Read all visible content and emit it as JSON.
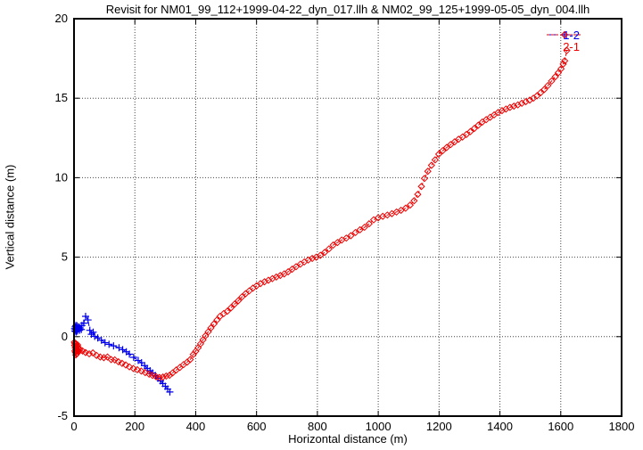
{
  "chart_data": {
    "type": "scatter",
    "title": "Revisit for NM01_99_112+1999-04-22_dyn_017.llh & NM02_99_125+1999-05-05_dyn_004.llh",
    "xlabel": "Horizontal distance (m)",
    "ylabel": "Vertical distance (m)",
    "xlim": [
      0,
      1800
    ],
    "ylim": [
      -5,
      20
    ],
    "xticks": [
      0,
      200,
      400,
      600,
      800,
      1000,
      1200,
      1400,
      1600,
      1800
    ],
    "yticks": [
      -5,
      0,
      5,
      10,
      15,
      20
    ],
    "grid": true,
    "legend_position": "top-right-inside",
    "colors": {
      "border": "#000000",
      "grid": "#444444",
      "title": "#000000"
    },
    "series": [
      {
        "name": "1-2",
        "color": "#0000ee",
        "marker": "plus",
        "dash": "5,3",
        "points": [
          [
            2,
            0.5
          ],
          [
            3,
            0.35
          ],
          [
            4,
            0.62
          ],
          [
            5,
            0.45
          ],
          [
            6,
            0.7
          ],
          [
            7,
            0.3
          ],
          [
            8,
            0.55
          ],
          [
            9,
            0.42
          ],
          [
            10,
            0.68
          ],
          [
            11,
            0.35
          ],
          [
            12,
            0.58
          ],
          [
            14,
            0.48
          ],
          [
            16,
            0.62
          ],
          [
            18,
            0.4
          ],
          [
            20,
            0.55
          ],
          [
            24,
            0.45
          ],
          [
            26,
            0.7
          ],
          [
            32,
            0.85
          ],
          [
            38,
            1.28
          ],
          [
            46,
            1.05
          ],
          [
            52,
            0.4
          ],
          [
            57,
            0.15
          ],
          [
            63,
            0.28
          ],
          [
            68,
            0.02
          ],
          [
            78,
            -0.08
          ],
          [
            90,
            -0.22
          ],
          [
            102,
            -0.38
          ],
          [
            115,
            -0.48
          ],
          [
            130,
            -0.58
          ],
          [
            148,
            -0.7
          ],
          [
            160,
            -0.82
          ],
          [
            172,
            -0.95
          ],
          [
            182,
            -1.1
          ],
          [
            196,
            -1.3
          ],
          [
            211,
            -1.5
          ],
          [
            222,
            -1.64
          ],
          [
            232,
            -1.82
          ],
          [
            241,
            -2.0
          ],
          [
            250,
            -2.14
          ],
          [
            258,
            -2.28
          ],
          [
            268,
            -2.45
          ],
          [
            276,
            -2.62
          ],
          [
            284,
            -2.78
          ],
          [
            292,
            -2.95
          ],
          [
            300,
            -3.12
          ],
          [
            308,
            -3.3
          ],
          [
            315,
            -3.48
          ]
        ]
      },
      {
        "name": "2-1",
        "color": "#ee0000",
        "marker": "diamond",
        "dash": "3,2",
        "points": [
          [
            1,
            -0.35
          ],
          [
            2,
            -0.55
          ],
          [
            3,
            -0.42
          ],
          [
            3,
            -0.9
          ],
          [
            4,
            -0.7
          ],
          [
            5,
            -0.5
          ],
          [
            5,
            -1.0
          ],
          [
            6,
            -0.82
          ],
          [
            6,
            -1.15
          ],
          [
            7,
            -0.45
          ],
          [
            8,
            -0.65
          ],
          [
            8,
            -1.08
          ],
          [
            9,
            -0.9
          ],
          [
            10,
            -0.6
          ],
          [
            10,
            -1.05
          ],
          [
            11,
            -0.78
          ],
          [
            12,
            -0.52
          ],
          [
            13,
            -0.88
          ],
          [
            14,
            -0.68
          ],
          [
            15,
            -0.95
          ],
          [
            18,
            -0.8
          ],
          [
            28,
            -0.9
          ],
          [
            38,
            -1.0
          ],
          [
            50,
            -1.08
          ],
          [
            62,
            -1.02
          ],
          [
            74,
            -1.18
          ],
          [
            86,
            -1.28
          ],
          [
            98,
            -1.32
          ],
          [
            110,
            -1.28
          ],
          [
            122,
            -1.44
          ],
          [
            134,
            -1.46
          ],
          [
            146,
            -1.58
          ],
          [
            158,
            -1.68
          ],
          [
            170,
            -1.78
          ],
          [
            182,
            -1.9
          ],
          [
            195,
            -2.0
          ],
          [
            208,
            -2.08
          ],
          [
            221,
            -2.16
          ],
          [
            234,
            -2.26
          ],
          [
            247,
            -2.36
          ],
          [
            258,
            -2.44
          ],
          [
            270,
            -2.52
          ],
          [
            281,
            -2.57
          ],
          [
            292,
            -2.54
          ],
          [
            303,
            -2.48
          ],
          [
            314,
            -2.43
          ],
          [
            324,
            -2.28
          ],
          [
            336,
            -2.1
          ],
          [
            348,
            -1.94
          ],
          [
            360,
            -1.76
          ],
          [
            372,
            -1.6
          ],
          [
            382,
            -1.44
          ],
          [
            392,
            -1.12
          ],
          [
            400,
            -0.92
          ],
          [
            408,
            -0.7
          ],
          [
            416,
            -0.45
          ],
          [
            424,
            -0.2
          ],
          [
            432,
            0.05
          ],
          [
            441,
            0.3
          ],
          [
            450,
            0.55
          ],
          [
            460,
            0.8
          ],
          [
            470,
            1.05
          ],
          [
            480,
            1.28
          ],
          [
            492,
            1.45
          ],
          [
            504,
            1.6
          ],
          [
            516,
            1.82
          ],
          [
            528,
            2.05
          ],
          [
            540,
            2.26
          ],
          [
            552,
            2.5
          ],
          [
            564,
            2.7
          ],
          [
            576,
            2.88
          ],
          [
            588,
            3.05
          ],
          [
            600,
            3.2
          ],
          [
            613,
            3.34
          ],
          [
            626,
            3.45
          ],
          [
            639,
            3.55
          ],
          [
            652,
            3.65
          ],
          [
            665,
            3.75
          ],
          [
            678,
            3.85
          ],
          [
            691,
            3.95
          ],
          [
            704,
            4.08
          ],
          [
            717,
            4.24
          ],
          [
            730,
            4.4
          ],
          [
            744,
            4.56
          ],
          [
            757,
            4.7
          ],
          [
            770,
            4.82
          ],
          [
            783,
            4.92
          ],
          [
            796,
            5.0
          ],
          [
            810,
            5.12
          ],
          [
            824,
            5.3
          ],
          [
            838,
            5.52
          ],
          [
            852,
            5.76
          ],
          [
            866,
            5.92
          ],
          [
            880,
            6.08
          ],
          [
            895,
            6.2
          ],
          [
            910,
            6.35
          ],
          [
            925,
            6.55
          ],
          [
            940,
            6.72
          ],
          [
            955,
            6.88
          ],
          [
            970,
            7.1
          ],
          [
            985,
            7.35
          ],
          [
            1000,
            7.48
          ],
          [
            1015,
            7.57
          ],
          [
            1030,
            7.65
          ],
          [
            1045,
            7.74
          ],
          [
            1060,
            7.84
          ],
          [
            1075,
            7.95
          ],
          [
            1090,
            8.08
          ],
          [
            1105,
            8.28
          ],
          [
            1118,
            8.55
          ],
          [
            1130,
            8.95
          ],
          [
            1142,
            9.45
          ],
          [
            1152,
            9.95
          ],
          [
            1163,
            10.4
          ],
          [
            1175,
            10.78
          ],
          [
            1187,
            11.12
          ],
          [
            1199,
            11.48
          ],
          [
            1212,
            11.7
          ],
          [
            1225,
            11.9
          ],
          [
            1238,
            12.08
          ],
          [
            1251,
            12.25
          ],
          [
            1264,
            12.42
          ],
          [
            1277,
            12.56
          ],
          [
            1290,
            12.72
          ],
          [
            1303,
            12.9
          ],
          [
            1316,
            13.1
          ],
          [
            1329,
            13.3
          ],
          [
            1342,
            13.5
          ],
          [
            1355,
            13.65
          ],
          [
            1368,
            13.8
          ],
          [
            1381,
            13.95
          ],
          [
            1394,
            14.1
          ],
          [
            1407,
            14.22
          ],
          [
            1420,
            14.32
          ],
          [
            1433,
            14.42
          ],
          [
            1446,
            14.5
          ],
          [
            1459,
            14.58
          ],
          [
            1472,
            14.68
          ],
          [
            1485,
            14.78
          ],
          [
            1498,
            14.88
          ],
          [
            1510,
            15.0
          ],
          [
            1522,
            15.15
          ],
          [
            1534,
            15.35
          ],
          [
            1546,
            15.55
          ],
          [
            1558,
            15.8
          ],
          [
            1570,
            16.08
          ],
          [
            1582,
            16.35
          ],
          [
            1592,
            16.6
          ],
          [
            1601,
            16.85
          ],
          [
            1608,
            17.15
          ],
          [
            1613,
            17.35
          ],
          [
            1620,
            18.0
          ]
        ]
      }
    ]
  }
}
